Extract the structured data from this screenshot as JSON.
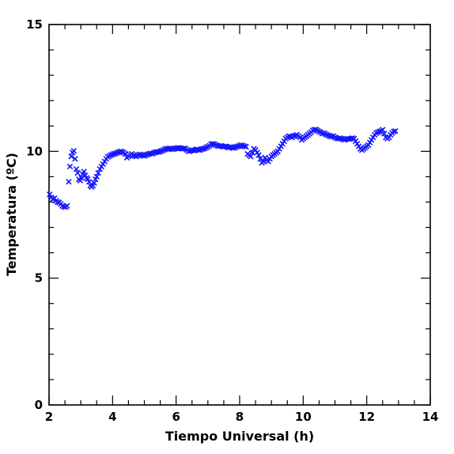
{
  "chart_data": {
    "type": "scatter",
    "xlabel": "Tiempo Universal (h)",
    "ylabel": "Temperatura (ºC)",
    "xlim": [
      2,
      14
    ],
    "ylim": [
      0,
      15
    ],
    "x_major_ticks": [
      2,
      4,
      6,
      8,
      10,
      12,
      14
    ],
    "y_major_ticks": [
      0,
      5,
      10,
      15
    ],
    "x_tick_labels": [
      "2",
      "4",
      "6",
      "8",
      "10",
      "12",
      "14"
    ],
    "y_tick_labels": [
      "0",
      "5",
      "10",
      "15"
    ],
    "marker": "x",
    "marker_color": "#1414ff",
    "grid": false,
    "series": [
      {
        "points": [
          [
            2.02,
            8.3
          ],
          [
            2.07,
            8.18
          ],
          [
            2.12,
            8.12
          ],
          [
            2.17,
            8.15
          ],
          [
            2.22,
            8.05
          ],
          [
            2.27,
            8.0
          ],
          [
            2.32,
            7.98
          ],
          [
            2.37,
            7.92
          ],
          [
            2.42,
            7.85
          ],
          [
            2.47,
            7.82
          ],
          [
            2.52,
            7.8
          ],
          [
            2.57,
            7.85
          ],
          [
            2.62,
            8.8
          ],
          [
            2.66,
            9.4
          ],
          [
            2.7,
            9.8
          ],
          [
            2.74,
            9.95
          ],
          [
            2.78,
            10.02
          ],
          [
            2.82,
            9.7
          ],
          [
            2.86,
            9.3
          ],
          [
            2.9,
            9.15
          ],
          [
            2.94,
            8.9
          ],
          [
            2.98,
            8.85
          ],
          [
            3.02,
            8.95
          ],
          [
            3.06,
            9.1
          ],
          [
            3.1,
            9.2
          ],
          [
            3.14,
            9.05
          ],
          [
            3.18,
            8.95
          ],
          [
            3.22,
            8.9
          ],
          [
            3.26,
            8.8
          ],
          [
            3.3,
            8.65
          ],
          [
            3.34,
            8.6
          ],
          [
            3.38,
            8.65
          ],
          [
            3.42,
            8.75
          ],
          [
            3.46,
            8.9
          ],
          [
            3.5,
            9.0
          ],
          [
            3.55,
            9.15
          ],
          [
            3.6,
            9.3
          ],
          [
            3.65,
            9.4
          ],
          [
            3.7,
            9.5
          ],
          [
            3.75,
            9.6
          ],
          [
            3.8,
            9.7
          ],
          [
            3.85,
            9.78
          ],
          [
            3.9,
            9.82
          ],
          [
            3.95,
            9.85
          ],
          [
            4.0,
            9.88
          ],
          [
            4.05,
            9.9
          ],
          [
            4.1,
            9.92
          ],
          [
            4.15,
            9.95
          ],
          [
            4.2,
            9.97
          ],
          [
            4.25,
            10.0
          ],
          [
            4.3,
            9.98
          ],
          [
            4.35,
            9.95
          ],
          [
            4.4,
            9.9
          ],
          [
            4.45,
            9.75
          ],
          [
            4.5,
            9.8
          ],
          [
            4.55,
            9.85
          ],
          [
            4.6,
            9.9
          ],
          [
            4.65,
            9.85
          ],
          [
            4.7,
            9.82
          ],
          [
            4.75,
            9.8
          ],
          [
            4.8,
            9.85
          ],
          [
            4.85,
            9.88
          ],
          [
            4.9,
            9.86
          ],
          [
            4.95,
            9.84
          ],
          [
            5.0,
            9.82
          ],
          [
            5.05,
            9.85
          ],
          [
            5.1,
            9.88
          ],
          [
            5.15,
            9.9
          ],
          [
            5.2,
            9.92
          ],
          [
            5.25,
            9.9
          ],
          [
            5.3,
            9.94
          ],
          [
            5.35,
            9.96
          ],
          [
            5.4,
            9.98
          ],
          [
            5.45,
            9.97
          ],
          [
            5.5,
            10.0
          ],
          [
            5.55,
            10.02
          ],
          [
            5.6,
            10.05
          ],
          [
            5.65,
            10.08
          ],
          [
            5.7,
            10.1
          ],
          [
            5.75,
            10.1
          ],
          [
            5.8,
            10.12
          ],
          [
            5.85,
            10.1
          ],
          [
            5.9,
            10.08
          ],
          [
            5.95,
            10.1
          ],
          [
            6.0,
            10.12
          ],
          [
            6.05,
            10.14
          ],
          [
            6.1,
            10.13
          ],
          [
            6.15,
            10.12
          ],
          [
            6.2,
            10.1
          ],
          [
            6.25,
            10.12
          ],
          [
            6.3,
            10.1
          ],
          [
            6.35,
            10.05
          ],
          [
            6.4,
            10.0
          ],
          [
            6.45,
            10.02
          ],
          [
            6.5,
            10.05
          ],
          [
            6.55,
            10.03
          ],
          [
            6.6,
            10.05
          ],
          [
            6.65,
            10.08
          ],
          [
            6.7,
            10.06
          ],
          [
            6.75,
            10.05
          ],
          [
            6.8,
            10.08
          ],
          [
            6.85,
            10.1
          ],
          [
            6.9,
            10.12
          ],
          [
            6.95,
            10.15
          ],
          [
            7.0,
            10.18
          ],
          [
            7.05,
            10.22
          ],
          [
            7.1,
            10.28
          ],
          [
            7.15,
            10.3
          ],
          [
            7.2,
            10.28
          ],
          [
            7.25,
            10.25
          ],
          [
            7.3,
            10.22
          ],
          [
            7.35,
            10.2
          ],
          [
            7.4,
            10.22
          ],
          [
            7.45,
            10.2
          ],
          [
            7.5,
            10.18
          ],
          [
            7.55,
            10.2
          ],
          [
            7.6,
            10.18
          ],
          [
            7.65,
            10.15
          ],
          [
            7.7,
            10.17
          ],
          [
            7.75,
            10.15
          ],
          [
            7.8,
            10.13
          ],
          [
            7.85,
            10.15
          ],
          [
            7.9,
            10.18
          ],
          [
            7.95,
            10.2
          ],
          [
            8.0,
            10.22
          ],
          [
            8.05,
            10.25
          ],
          [
            8.1,
            10.22
          ],
          [
            8.15,
            10.2
          ],
          [
            8.2,
            10.18
          ],
          [
            8.25,
            9.9
          ],
          [
            8.3,
            9.85
          ],
          [
            8.35,
            9.8
          ],
          [
            8.4,
            9.95
          ],
          [
            8.45,
            10.1
          ],
          [
            8.5,
            10.05
          ],
          [
            8.55,
            9.95
          ],
          [
            8.6,
            9.85
          ],
          [
            8.65,
            9.7
          ],
          [
            8.7,
            9.55
          ],
          [
            8.75,
            9.6
          ],
          [
            8.8,
            9.75
          ],
          [
            8.85,
            9.65
          ],
          [
            8.9,
            9.6
          ],
          [
            8.95,
            9.7
          ],
          [
            9.0,
            9.8
          ],
          [
            9.05,
            9.85
          ],
          [
            9.1,
            9.9
          ],
          [
            9.15,
            9.95
          ],
          [
            9.2,
            10.0
          ],
          [
            9.25,
            10.1
          ],
          [
            9.3,
            10.2
          ],
          [
            9.35,
            10.3
          ],
          [
            9.4,
            10.4
          ],
          [
            9.45,
            10.5
          ],
          [
            9.5,
            10.55
          ],
          [
            9.55,
            10.6
          ],
          [
            9.6,
            10.58
          ],
          [
            9.65,
            10.55
          ],
          [
            9.7,
            10.6
          ],
          [
            9.75,
            10.62
          ],
          [
            9.8,
            10.65
          ],
          [
            9.85,
            10.6
          ],
          [
            9.9,
            10.55
          ],
          [
            9.95,
            10.45
          ],
          [
            10.0,
            10.5
          ],
          [
            10.05,
            10.55
          ],
          [
            10.1,
            10.6
          ],
          [
            10.15,
            10.65
          ],
          [
            10.2,
            10.7
          ],
          [
            10.25,
            10.75
          ],
          [
            10.3,
            10.82
          ],
          [
            10.35,
            10.85
          ],
          [
            10.4,
            10.86
          ],
          [
            10.45,
            10.82
          ],
          [
            10.5,
            10.78
          ],
          [
            10.55,
            10.75
          ],
          [
            10.6,
            10.7
          ],
          [
            10.65,
            10.72
          ],
          [
            10.7,
            10.68
          ],
          [
            10.75,
            10.65
          ],
          [
            10.8,
            10.62
          ],
          [
            10.85,
            10.6
          ],
          [
            10.9,
            10.58
          ],
          [
            10.95,
            10.6
          ],
          [
            11.0,
            10.55
          ],
          [
            11.05,
            10.52
          ],
          [
            11.1,
            10.5
          ],
          [
            11.15,
            10.52
          ],
          [
            11.2,
            10.5
          ],
          [
            11.25,
            10.48
          ],
          [
            11.3,
            10.45
          ],
          [
            11.35,
            10.48
          ],
          [
            11.4,
            10.5
          ],
          [
            11.45,
            10.48
          ],
          [
            11.5,
            10.5
          ],
          [
            11.55,
            10.52
          ],
          [
            11.6,
            10.5
          ],
          [
            11.65,
            10.4
          ],
          [
            11.7,
            10.3
          ],
          [
            11.75,
            10.2
          ],
          [
            11.8,
            10.1
          ],
          [
            11.85,
            10.05
          ],
          [
            11.9,
            10.1
          ],
          [
            11.95,
            10.15
          ],
          [
            12.0,
            10.2
          ],
          [
            12.05,
            10.25
          ],
          [
            12.1,
            10.35
          ],
          [
            12.15,
            10.45
          ],
          [
            12.2,
            10.55
          ],
          [
            12.25,
            10.65
          ],
          [
            12.3,
            10.72
          ],
          [
            12.35,
            10.75
          ],
          [
            12.4,
            10.78
          ],
          [
            12.45,
            10.8
          ],
          [
            12.5,
            10.85
          ],
          [
            12.55,
            10.7
          ],
          [
            12.6,
            10.55
          ],
          [
            12.65,
            10.5
          ],
          [
            12.7,
            10.55
          ],
          [
            12.75,
            10.65
          ],
          [
            12.8,
            10.72
          ],
          [
            12.85,
            10.78
          ],
          [
            12.9,
            10.8
          ]
        ]
      }
    ]
  }
}
